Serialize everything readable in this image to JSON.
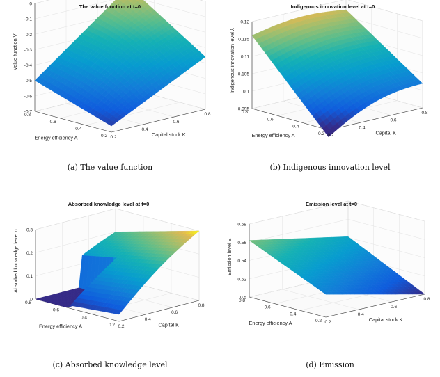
{
  "chart_data": [
    {
      "type": "surface",
      "title": "The value function at t=0",
      "xlabel": "Capital stock K",
      "ylabel": "Energy efficiency A",
      "zlabel": "Value function V",
      "xticks": [
        "0.2",
        "0.4",
        "0.6",
        "0.8"
      ],
      "yticks": [
        "0.2",
        "0.4",
        "0.6",
        "0.8"
      ],
      "zticks": [
        "-0.7",
        "-0.6",
        "-0.5",
        "-0.4",
        "-0.3",
        "-0.2",
        "-0.1",
        "0"
      ],
      "zlim": [
        -0.7,
        0
      ],
      "corners": {
        "K_min_A_min": -0.66,
        "K_max_A_min": -0.36,
        "K_min_A_max": -0.5,
        "K_max_A_max": -0.04
      },
      "caption": "(a) The value function"
    },
    {
      "type": "surface",
      "title": "Indigenous innovation level at t=0",
      "xlabel": "Capital K",
      "ylabel": "Energy efficiency A",
      "zlabel": "Indigenous innovation level λ",
      "xticks": [
        "0.2",
        "0.4",
        "0.6",
        "0.8"
      ],
      "yticks": [
        "0.2",
        "0.4",
        "0.6",
        "0.8"
      ],
      "zticks": [
        "0.095",
        "0.1",
        "0.105",
        "0.11",
        "0.115",
        "0.12"
      ],
      "zlim": [
        0.095,
        0.12
      ],
      "corners": {
        "K_min_A_min": 0.097,
        "K_max_A_min": 0.102,
        "K_min_A_max": 0.116,
        "K_max_A_max": 0.117
      },
      "caption": "(b) Indigenous innovation level"
    },
    {
      "type": "surface",
      "title": "Absorbed knowledge level at t=0",
      "xlabel": "Capital K",
      "ylabel": "Energy efficiency A",
      "zlabel": "Absorbed knowledge level σ",
      "xticks": [
        "0.2",
        "0.4",
        "0.6",
        "0.8"
      ],
      "yticks": [
        "0.2",
        "0.4",
        "0.6",
        "0.8"
      ],
      "zticks": [
        "0",
        "0.1",
        "0.2",
        "0.3"
      ],
      "zlim": [
        0,
        0.3
      ],
      "corners": {
        "K_min_A_min": 0.03,
        "K_max_A_min": 0.3,
        "K_min_A_max": 0.0,
        "K_max_A_max": 0.2
      },
      "caption": "(c) Absorbed knowledge level"
    },
    {
      "type": "surface",
      "title": "Emission level at t=0",
      "xlabel": "Capital stock K",
      "ylabel": "Energy efficiency A",
      "zlabel": "Emission level E",
      "xticks": [
        "0.2",
        "0.4",
        "0.6",
        "0.8"
      ],
      "yticks": [
        "0.2",
        "0.4",
        "0.6",
        "0.8"
      ],
      "zticks": [
        "0.5",
        "0.52",
        "0.54",
        "0.56",
        "0.58"
      ],
      "zlim": [
        0.5,
        0.58
      ],
      "corners": {
        "K_min_A_min": 0.525,
        "K_max_A_min": 0.5,
        "K_min_A_max": 0.562,
        "K_max_A_max": 0.541
      },
      "caption": "(d) Emission"
    }
  ]
}
